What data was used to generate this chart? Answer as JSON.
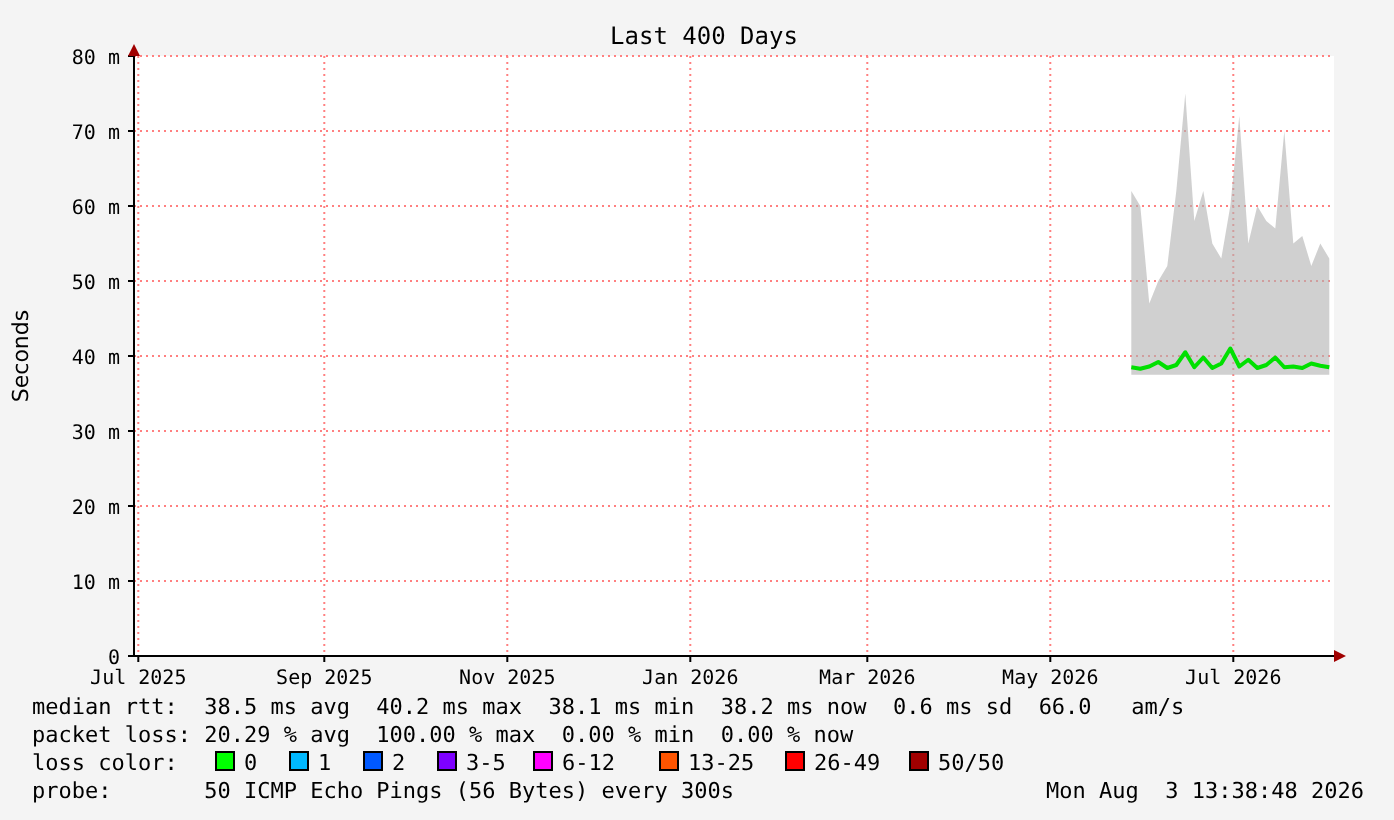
{
  "chart_data": {
    "type": "line",
    "title": "Last 400 Days",
    "ylabel": "Seconds",
    "xlim": [
      "2025-06-29T13:38",
      "2026-08-03T13:38"
    ],
    "xticks": [
      {
        "value": "2025-07-01",
        "label": "Jul 2025"
      },
      {
        "value": "2025-09-01",
        "label": "Sep 2025"
      },
      {
        "value": "2025-11-01",
        "label": "Nov 2025"
      },
      {
        "value": "2026-01-01",
        "label": "Jan 2026"
      },
      {
        "value": "2026-03-01",
        "label": "Mar 2026"
      },
      {
        "value": "2026-05-01",
        "label": "May 2026"
      },
      {
        "value": "2026-07-01",
        "label": "Jul 2026"
      }
    ],
    "ylim": [
      0,
      80
    ],
    "yticks": [
      0,
      {
        "value": 10,
        "label": "10 m"
      },
      {
        "value": 20,
        "label": "20 m"
      },
      {
        "value": 30,
        "label": "30 m"
      },
      {
        "value": 40,
        "label": "40 m"
      },
      {
        "value": 50,
        "label": "50 m"
      },
      {
        "value": 60,
        "label": "60 m"
      },
      {
        "value": 70,
        "label": "70 m"
      },
      {
        "value": 80,
        "label": "80 m"
      }
    ],
    "x": [
      "2026-05-28",
      "2026-05-31",
      "2026-06-03",
      "2026-06-06",
      "2026-06-09",
      "2026-06-12",
      "2026-06-15",
      "2026-06-18",
      "2026-06-21",
      "2026-06-24",
      "2026-06-27",
      "2026-06-30",
      "2026-07-03",
      "2026-07-06",
      "2026-07-09",
      "2026-07-12",
      "2026-07-15",
      "2026-07-18",
      "2026-07-21",
      "2026-07-24",
      "2026-07-27",
      "2026-07-30",
      "2026-08-02"
    ],
    "series": [
      {
        "color": "#00e000",
        "values": [
          38.5,
          38.3,
          38.6,
          39.2,
          38.4,
          38.8,
          40.5,
          38.5,
          39.8,
          38.4,
          39.0,
          41,
          38.6,
          39.5,
          38.4,
          38.8,
          39.8,
          38.5,
          38.6,
          38.4,
          39.0,
          38.7,
          38.5
        ],
        "lower": [
          37.5,
          37.5,
          37.5,
          37.5,
          37.5,
          37.5,
          37.5,
          37.5,
          37.5,
          37.5,
          37.5,
          37.5,
          37.5,
          37.5,
          37.5,
          37.5,
          37.5,
          37.5,
          37.5,
          37.5,
          37.5,
          37.5,
          37.5
        ],
        "upper": [
          62,
          60,
          47,
          50,
          52,
          62,
          75,
          58,
          62,
          55,
          53,
          60,
          72,
          55,
          60,
          58,
          57,
          70,
          55,
          56,
          52,
          55,
          53
        ]
      }
    ],
    "grid": true,
    "marker": "none",
    "line_style": "solid",
    "annotations": [
      "median rtt:  38.5 ms avg  40.2 ms max  38.1 ms min  38.2 ms now  0.6 ms sd  66.0   am/s",
      "packet loss: 20.29 % avg  100.00 % max  0.00 % min  0.00 % now",
      "loss color:",
      "0",
      "1",
      "2",
      "3-5",
      "6-12",
      "13-25",
      "26-49",
      "50/50",
      "probe:       50 ICMP Echo Pings (56 Bytes) every 300s",
      "Mon Aug  3 13:38:48 2026"
    ]
  }
}
